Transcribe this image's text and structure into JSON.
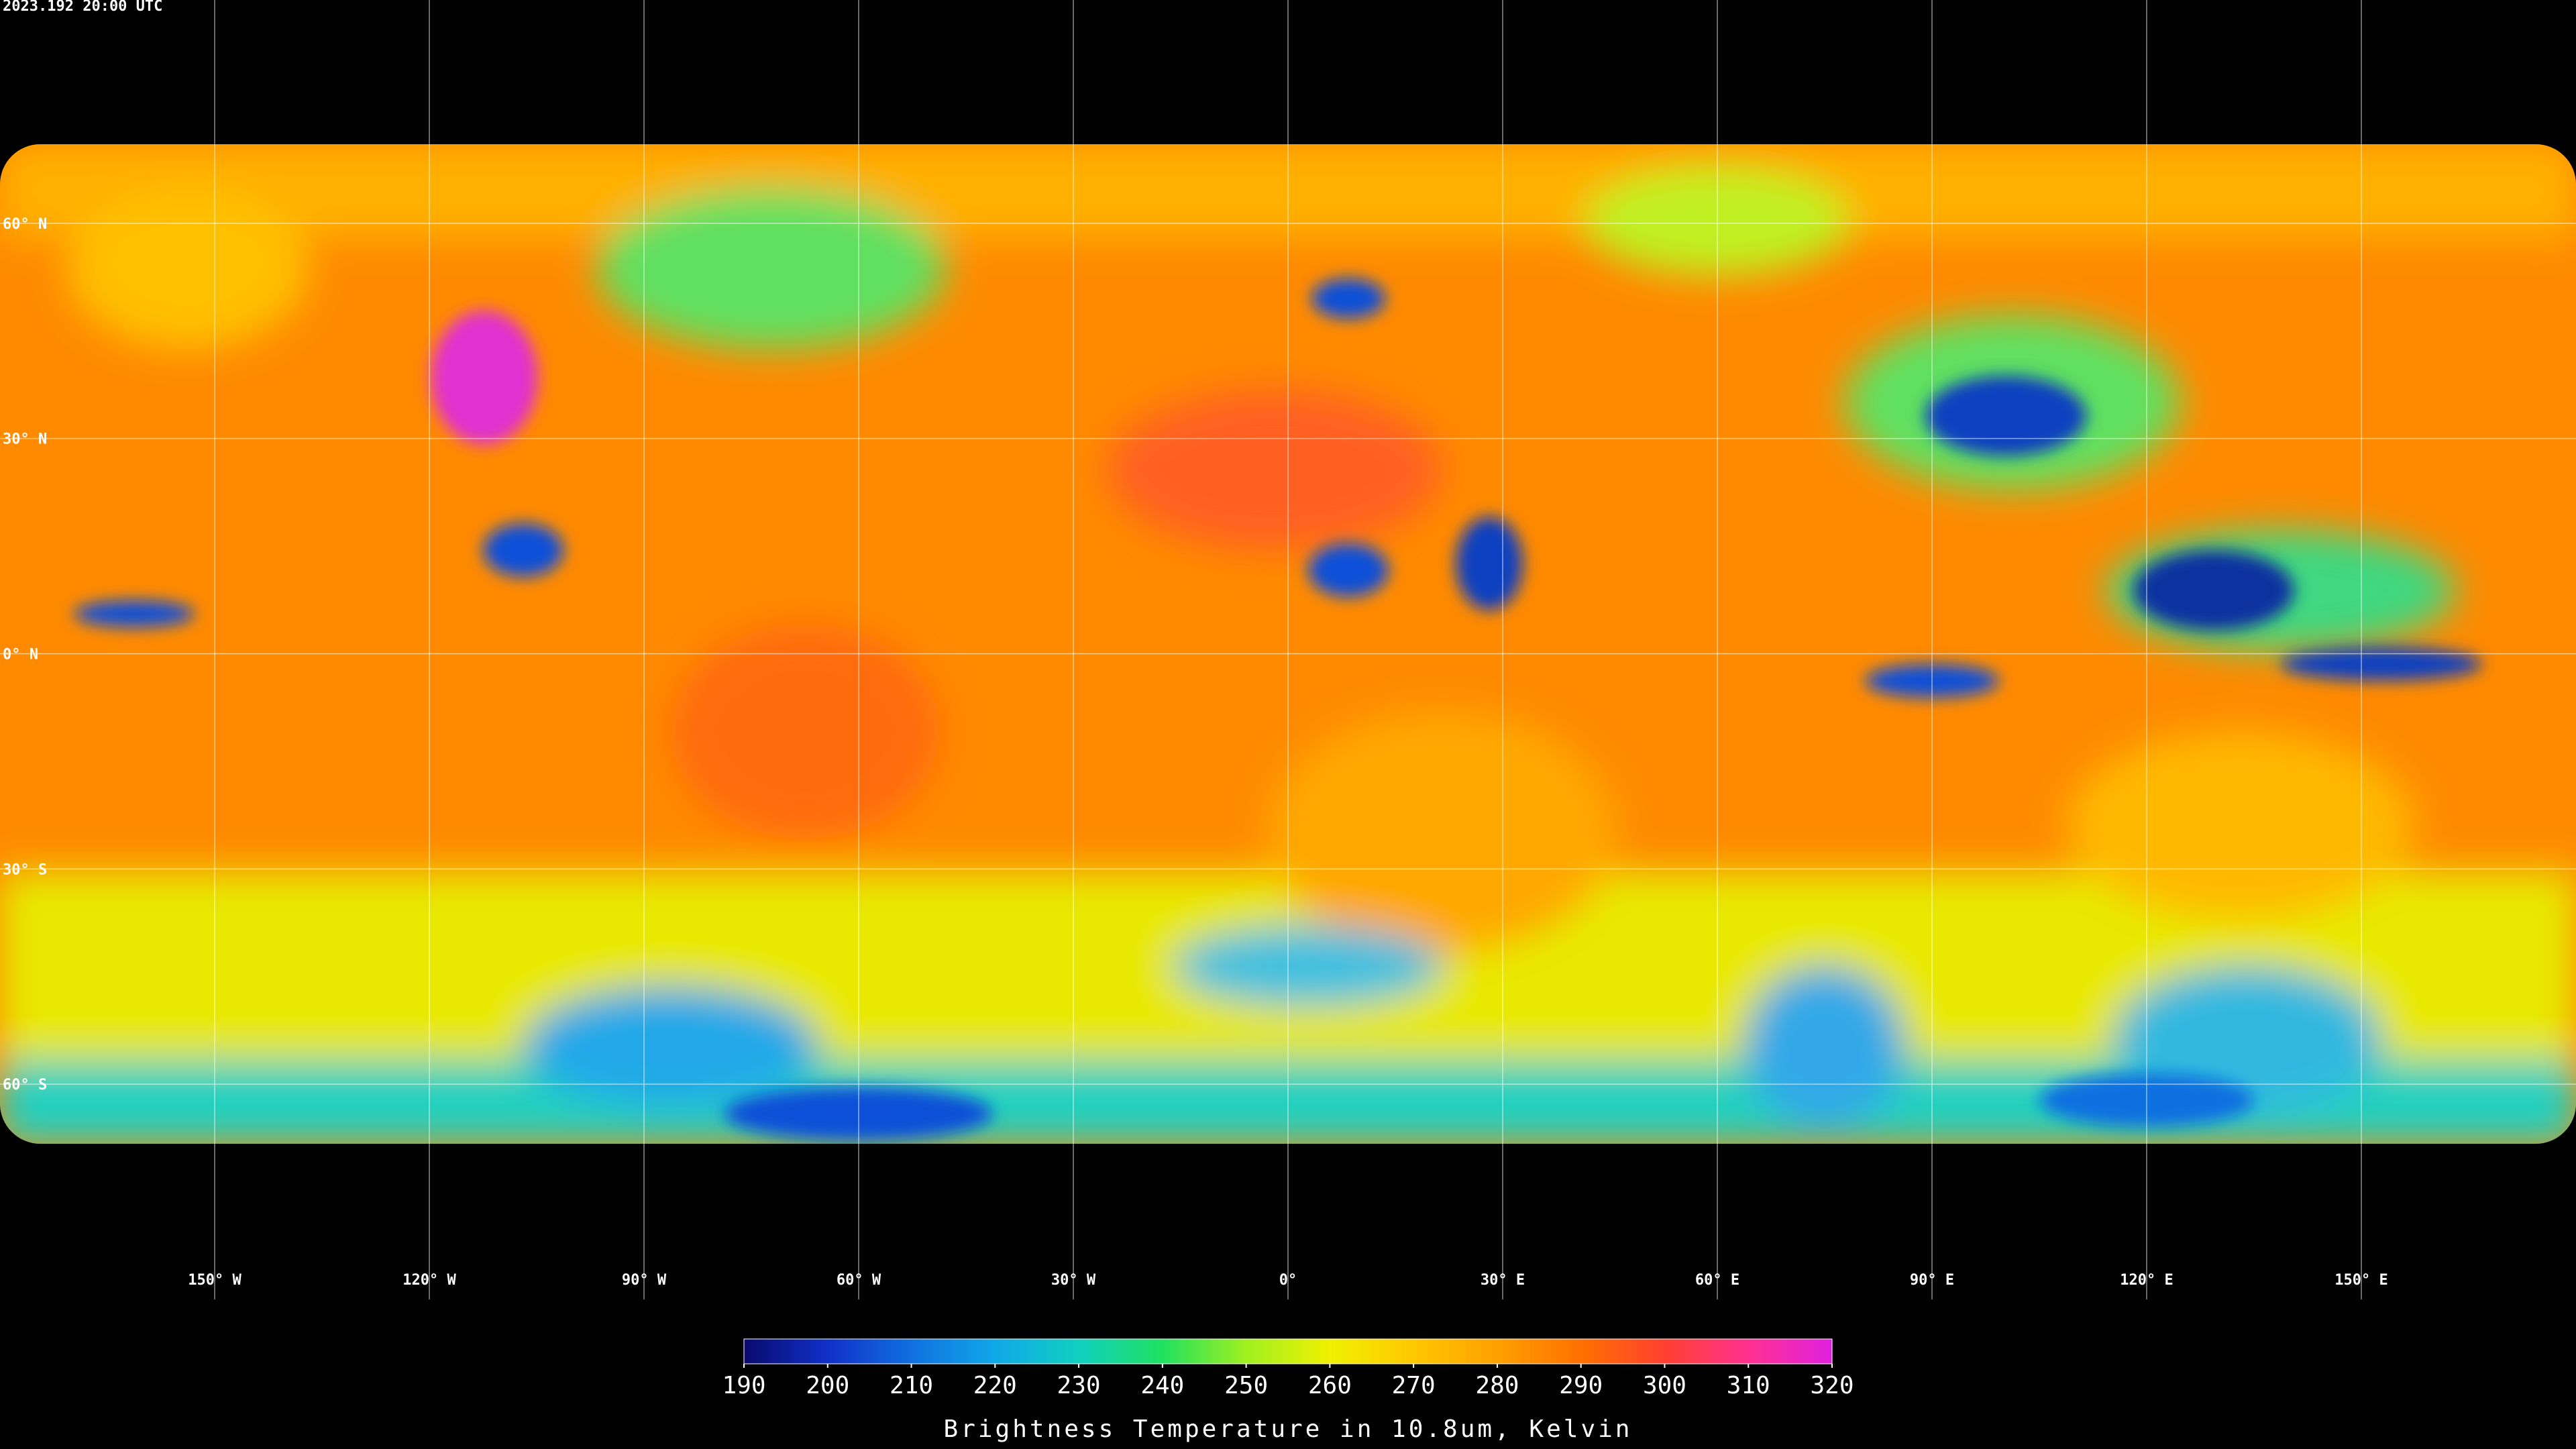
{
  "timestamp": "2023.192 20:00 UTC",
  "latitudes": [
    {
      "value": 60,
      "label": "60° N"
    },
    {
      "value": 30,
      "label": "30° N"
    },
    {
      "value": 0,
      "label": "0° N"
    },
    {
      "value": -30,
      "label": "30° S"
    },
    {
      "value": -60,
      "label": "60° S"
    }
  ],
  "longitudes": [
    {
      "value": -150,
      "label": "150° W"
    },
    {
      "value": -120,
      "label": "120° W"
    },
    {
      "value": -90,
      "label": "90° W"
    },
    {
      "value": -60,
      "label": "60° W"
    },
    {
      "value": -30,
      "label": "30° W"
    },
    {
      "value": 0,
      "label": "0°"
    },
    {
      "value": 30,
      "label": "30° E"
    },
    {
      "value": 60,
      "label": "60° E"
    },
    {
      "value": 90,
      "label": "90° E"
    },
    {
      "value": 120,
      "label": "120° E"
    },
    {
      "value": 150,
      "label": "150° E"
    }
  ],
  "colorbar": {
    "label": "Brightness Temperature in 10.8um, Kelvin",
    "range": [
      190,
      320
    ],
    "ticks": [
      190,
      200,
      210,
      220,
      230,
      240,
      250,
      260,
      270,
      280,
      290,
      300,
      310,
      320
    ],
    "colors": [
      "#0a0a6e",
      "#1030c8",
      "#1070e0",
      "#10a8e8",
      "#10d0c0",
      "#20e060",
      "#a0f020",
      "#f0f000",
      "#ffc800",
      "#ffa000",
      "#ff7000",
      "#ff4030",
      "#ff3090",
      "#e020e0"
    ]
  }
}
